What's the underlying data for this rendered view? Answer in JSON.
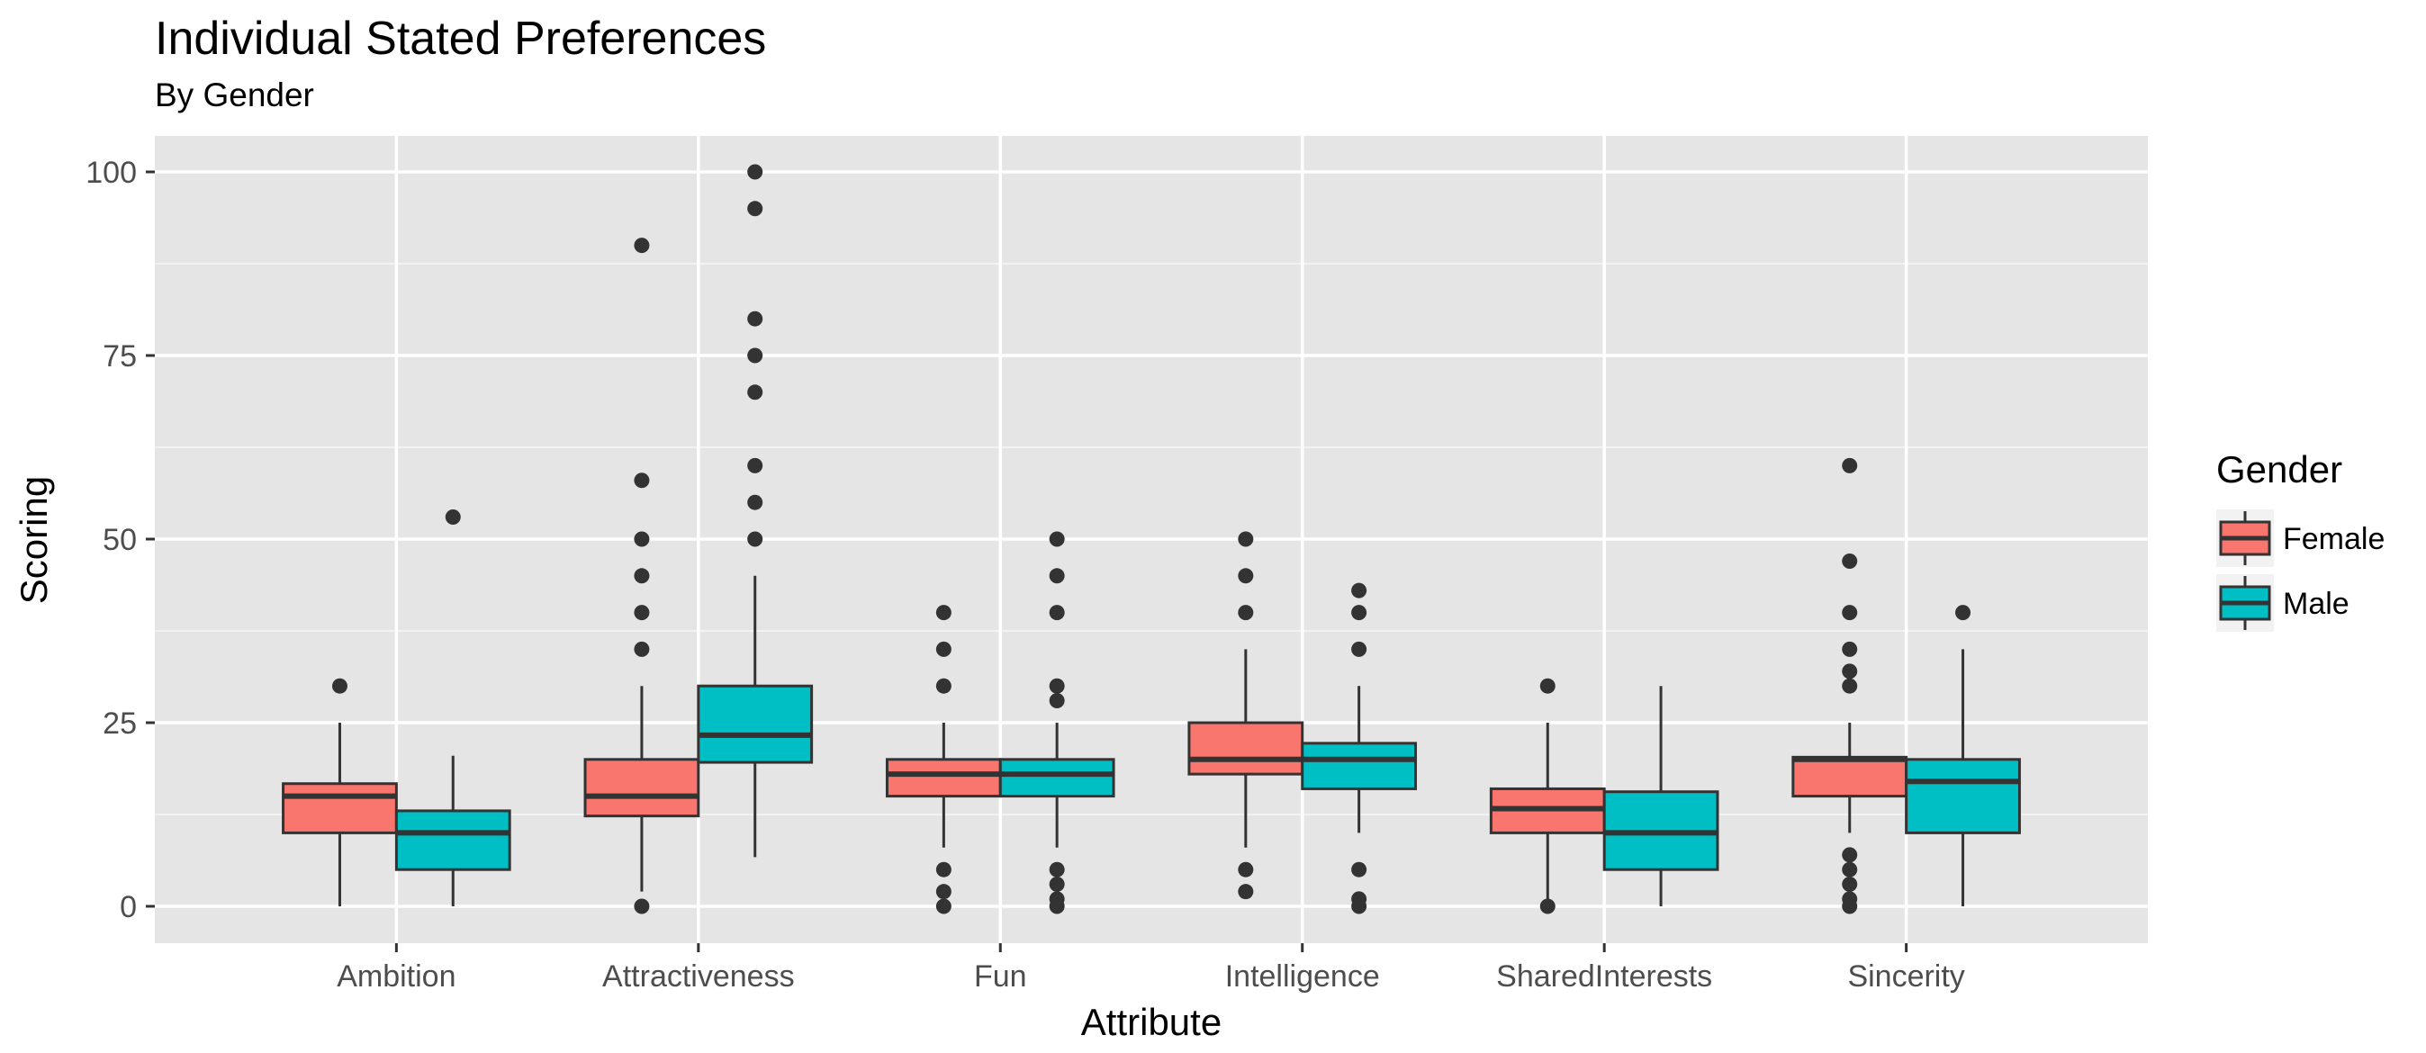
{
  "chart_data": {
    "type": "boxplot",
    "title": "Individual Stated Preferences",
    "subtitle": "By Gender",
    "xlabel": "Attribute",
    "ylabel": "Scoring",
    "ylim": [
      -4,
      105
    ],
    "yticks": [
      0,
      25,
      50,
      75,
      100
    ],
    "grid": true,
    "legend": {
      "title": "Gender",
      "position": "right"
    },
    "categories": [
      "Ambition",
      "Attractiveness",
      "Fun",
      "Intelligence",
      "SharedInterests",
      "Sincerity"
    ],
    "series": [
      {
        "name": "Female",
        "color": "#F8766D",
        "boxes": [
          {
            "min": 0,
            "q1": 10,
            "median": 15,
            "q3": 16.7,
            "max": 25,
            "outliers": [
              30
            ]
          },
          {
            "min": 2,
            "q1": 12.3,
            "median": 15,
            "q3": 20,
            "max": 30,
            "outliers": [
              0,
              35,
              40,
              45,
              50,
              58,
              90
            ]
          },
          {
            "min": 8,
            "q1": 15,
            "median": 18,
            "q3": 20,
            "max": 25,
            "outliers": [
              0,
              2,
              5,
              30,
              35,
              40
            ]
          },
          {
            "min": 8,
            "q1": 18,
            "median": 20,
            "q3": 25,
            "max": 35,
            "outliers": [
              2,
              5,
              40,
              45,
              50
            ]
          },
          {
            "min": 0,
            "q1": 10,
            "median": 13.3,
            "q3": 16,
            "max": 25,
            "outliers": [
              0,
              30
            ]
          },
          {
            "min": 10,
            "q1": 15,
            "median": 20,
            "q3": 20.3,
            "max": 25,
            "outliers": [
              0,
              1,
              3,
              5,
              7,
              30,
              32,
              35,
              40,
              47,
              60
            ]
          }
        ]
      },
      {
        "name": "Male",
        "color": "#00BFC4",
        "boxes": [
          {
            "min": 0,
            "q1": 5,
            "median": 10,
            "q3": 13,
            "max": 20.5,
            "outliers": [
              53
            ]
          },
          {
            "min": 6.7,
            "q1": 19.6,
            "median": 23.3,
            "q3": 30,
            "max": 45,
            "outliers": [
              50,
              55,
              60,
              70,
              75,
              80,
              95,
              100
            ]
          },
          {
            "min": 8,
            "q1": 15,
            "median": 18,
            "q3": 20,
            "max": 25,
            "outliers": [
              0,
              1,
              3,
              5,
              28,
              30,
              40,
              45,
              50
            ]
          },
          {
            "min": 10,
            "q1": 16,
            "median": 20,
            "q3": 22.2,
            "max": 30,
            "outliers": [
              0,
              1,
              5,
              35,
              40,
              43
            ]
          },
          {
            "min": 0,
            "q1": 5,
            "median": 10,
            "q3": 15.6,
            "max": 30,
            "outliers": []
          },
          {
            "min": 0,
            "q1": 10,
            "median": 17,
            "q3": 20,
            "max": 35,
            "outliers": [
              40
            ]
          }
        ]
      }
    ]
  }
}
